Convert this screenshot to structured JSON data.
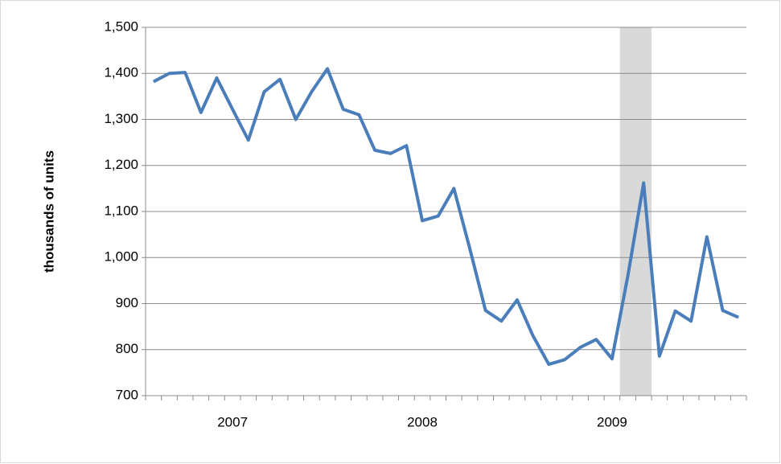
{
  "chart_data": {
    "type": "line",
    "y_label": "thousands of units",
    "categories": [
      null,
      null,
      null,
      null,
      null,
      "2007",
      null,
      null,
      null,
      null,
      null,
      null,
      null,
      null,
      null,
      null,
      null,
      "2008",
      null,
      null,
      null,
      null,
      null,
      null,
      null,
      null,
      null,
      null,
      null,
      "2009",
      null,
      null,
      null,
      null,
      null,
      null,
      null,
      null
    ],
    "series": [
      {
        "name": "units",
        "color": "#4a7ebb",
        "values": [
          1382,
          1400,
          1402,
          1315,
          1390,
          1322,
          1255,
          1360,
          1387,
          1300,
          1360,
          1410,
          1322,
          1310,
          1233,
          1226,
          1243,
          1080,
          1090,
          1150,
          1020,
          885,
          862,
          908,
          830,
          768,
          778,
          805,
          822,
          780,
          960,
          1162,
          786,
          884,
          862,
          1045,
          885,
          870
        ]
      }
    ],
    "shaded_range": [
      30,
      31
    ],
    "shade_color": "#d9d9d9",
    "ylim": [
      700,
      1500
    ],
    "yticks": [
      {
        "value": 700,
        "label": "700"
      },
      {
        "value": 800,
        "label": "800"
      },
      {
        "value": 900,
        "label": "900"
      },
      {
        "value": 1000,
        "label": "1,000"
      },
      {
        "value": 1100,
        "label": "1,100"
      },
      {
        "value": 1200,
        "label": "1,200"
      },
      {
        "value": 1300,
        "label": "1,300"
      },
      {
        "value": 1400,
        "label": "1,400"
      },
      {
        "value": 1500,
        "label": "1,500"
      }
    ],
    "grid": true
  }
}
